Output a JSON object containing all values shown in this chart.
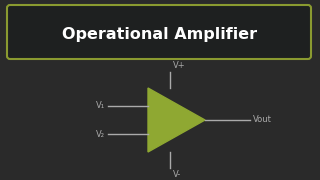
{
  "bg_color": "#2a2a2a",
  "title_text": "Operational Amplifier",
  "title_color": "#ffffff",
  "title_fontsize": 11.5,
  "title_box_edge_color": "#8a9a30",
  "title_box_bg": "#1e2020",
  "triangle_color": "#8fa832",
  "line_color": "#aaaaaa",
  "label_color": "#aaaaaa",
  "label_fontsize": 6.0,
  "v1_label": "V₁",
  "v2_label": "V₂",
  "vout_label": "Vout",
  "vplus_label": "V+",
  "vminus_label": "V-"
}
